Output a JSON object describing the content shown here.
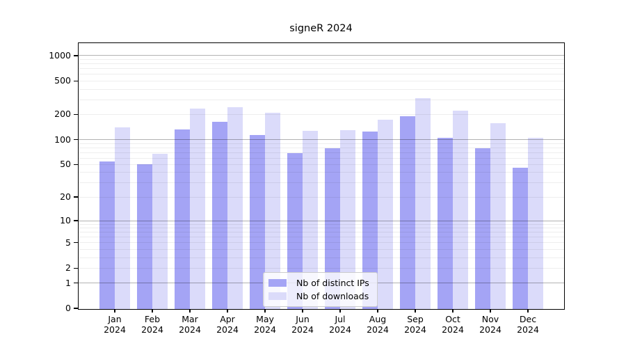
{
  "chart_data": {
    "type": "bar",
    "title": "signeR 2024",
    "months": [
      "Jan",
      "Feb",
      "Mar",
      "Apr",
      "May",
      "Jun",
      "Jul",
      "Aug",
      "Sep",
      "Oct",
      "Nov",
      "Dec"
    ],
    "year_label": "2024",
    "categories": [
      "Jan 2024",
      "Feb 2024",
      "Mar 2024",
      "Apr 2024",
      "May 2024",
      "Jun 2024",
      "Jul 2024",
      "Aug 2024",
      "Sep 2024",
      "Oct 2024",
      "Nov 2024",
      "Dec 2024"
    ],
    "series": [
      {
        "name": "Nb of distinct IPs",
        "color": "#a4a4f5",
        "values": [
          55,
          51,
          133,
          165,
          115,
          70,
          79,
          125,
          193,
          107,
          80,
          46
        ]
      },
      {
        "name": "Nb of downloads",
        "color": "#dbdbfa",
        "values": [
          140,
          68,
          235,
          245,
          210,
          128,
          130,
          173,
          315,
          225,
          160,
          107
        ]
      }
    ],
    "yscale": "log1p",
    "yticks": [
      0,
      1,
      2,
      5,
      10,
      20,
      50,
      100,
      200,
      500,
      1000
    ],
    "minor_gridlines": [
      1,
      2,
      3,
      4,
      5,
      6,
      7,
      8,
      9,
      10,
      20,
      30,
      40,
      50,
      60,
      70,
      80,
      90,
      100,
      200,
      300,
      400,
      500,
      600,
      700,
      800,
      900,
      1000
    ],
    "major_gridlines": [
      1,
      10,
      100,
      1000
    ],
    "xlabel": "",
    "ylabel": "",
    "grid": "on",
    "legend_position": "inside-bottom-center",
    "colors": {
      "background": "#ffffff",
      "spine": "#000000",
      "major_grid": "rgba(0,0,0,0.30)",
      "minor_grid": "rgba(0,0,0,0.065)",
      "text": "#000000"
    }
  }
}
